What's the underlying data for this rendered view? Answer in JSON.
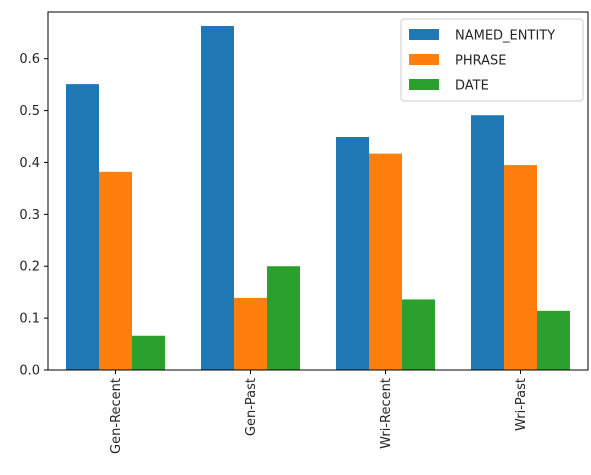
{
  "chart_data": {
    "type": "bar",
    "title": "",
    "xlabel": "",
    "ylabel": "",
    "categories": [
      "Gen-Recent",
      "Gen-Past",
      "Wri-Recent",
      "Wri-Past"
    ],
    "series": [
      {
        "name": "NAMED_ENTITY",
        "color": "#1f77b4",
        "values": [
          0.551,
          0.663,
          0.449,
          0.491
        ]
      },
      {
        "name": "PHRASE",
        "color": "#ff7f0e",
        "values": [
          0.382,
          0.139,
          0.417,
          0.395
        ]
      },
      {
        "name": "DATE",
        "color": "#2ca02c",
        "values": [
          0.066,
          0.2,
          0.136,
          0.114
        ]
      }
    ],
    "ylim": [
      0,
      0.69
    ],
    "yticks": [
      "0.0",
      "0.1",
      "0.2",
      "0.3",
      "0.4",
      "0.5",
      "0.6"
    ],
    "grid": false,
    "legend_position": "top-right"
  }
}
